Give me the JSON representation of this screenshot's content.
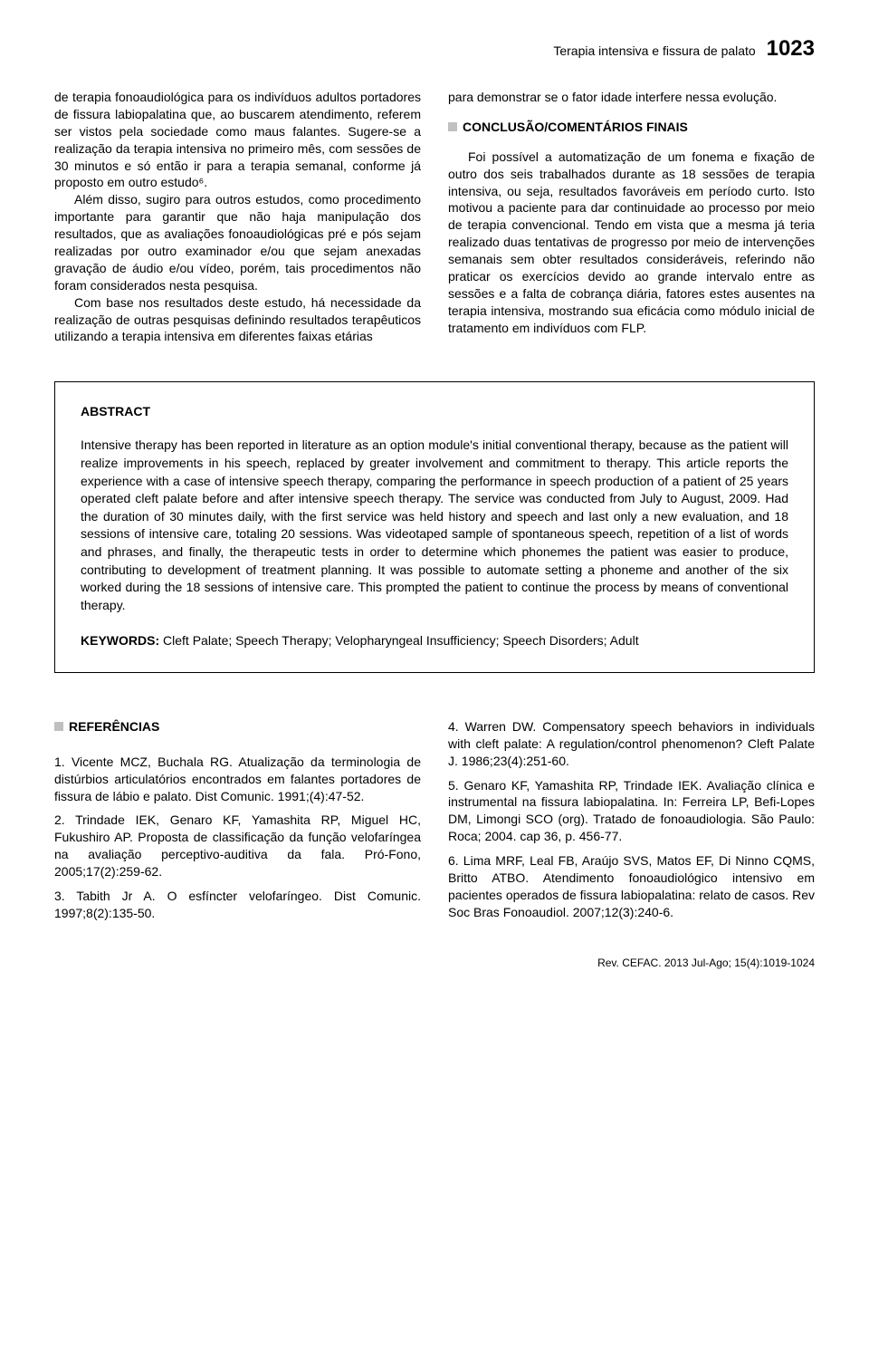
{
  "header": {
    "running_title": "Terapia intensiva e fissura de palato",
    "page_number": "1023"
  },
  "left_col": {
    "p1": "de terapia fonoaudiológica para os indivíduos adultos portadores de fissura labiopalatina que, ao buscarem atendimento, referem ser vistos pela sociedade como maus falantes. Sugere-se a realização da terapia intensiva no primeiro mês, com sessões de 30 minutos e só então ir para a terapia semanal, conforme já proposto em outro estudo⁶.",
    "p2": "Além disso, sugiro para outros estudos, como procedimento importante para garantir que não haja manipulação dos resultados, que as avaliações fonoaudiológicas pré e pós sejam realizadas por outro examinador e/ou que sejam anexadas gravação de áudio e/ou vídeo, porém, tais procedimentos não foram considerados nesta pesquisa.",
    "p3": "Com base nos resultados deste estudo, há necessidade da realização de outras pesquisas definindo resultados terapêuticos utilizando a terapia intensiva em diferentes faixas etárias"
  },
  "right_col": {
    "p1": "para demonstrar se o fator idade interfere nessa evolução.",
    "section_title": "CONCLUSÃO/COMENTÁRIOS FINAIS",
    "p2": "Foi possível a automatização de um fonema e fixação de outro dos seis trabalhados durante as 18 sessões de terapia intensiva, ou seja, resultados favoráveis em período curto. Isto motivou a paciente para dar continuidade ao processo por meio de terapia convencional. Tendo em vista que a mesma já teria realizado duas tentativas de progresso por meio de intervenções semanais sem obter resultados consideráveis, referindo não praticar os exercícios devido ao grande intervalo entre as sessões e a falta de cobrança diária, fatores estes ausentes na terapia intensiva, mostrando sua eficácia como módulo inicial de tratamento em indivíduos com FLP."
  },
  "abstract": {
    "title": "ABSTRACT",
    "text": "Intensive therapy has been reported in literature as an option module's initial conventional therapy, because as the patient will realize improvements in his speech, replaced by greater involvement and commitment to therapy. This article reports the experience with a case of intensive speech therapy, comparing the performance in speech production of a patient of 25 years operated cleft palate before and after intensive speech therapy. The service was conducted from July to August, 2009. Had the duration of 30 minutes daily, with the first service was held history and speech and last only a new evaluation, and 18 sessions of intensive care, totaling 20 sessions. Was videotaped sample of spontaneous speech, repetition of a list of words and phrases, and finally, the therapeutic tests in order to determine which phonemes the patient was easier to produce, contributing to development of treatment planning. It was possible to automate setting a phoneme and another of the six worked during the 18 sessions of intensive care. This prompted the patient to continue the process by means of conventional therapy.",
    "keywords_label": "KEYWORDS:",
    "keywords": " Cleft Palate; Speech Therapy; Velopharyngeal Insufficiency; Speech Disorders; Adult"
  },
  "references": {
    "title": "REFERÊNCIAS",
    "left": [
      "1. Vicente MCZ, Buchala RG. Atualização da terminologia de distúrbios articulatórios encontrados em falantes portadores de fissura de lábio e palato. Dist Comunic. 1991;(4):47-52.",
      "2. Trindade IEK, Genaro KF, Yamashita RP, Miguel HC, Fukushiro AP. Proposta de classificação da função velofaríngea na avaliação perceptivo-auditiva da fala. Pró-Fono, 2005;17(2):259-62.",
      "3. Tabith Jr A. O esfíncter velofaríngeo. Dist Comunic. 1997;8(2):135-50."
    ],
    "right": [
      "4. Warren DW. Compensatory speech behaviors in individuals with cleft palate: A regulation/control phenomenon? Cleft Palate J. 1986;23(4):251-60.",
      "5. Genaro KF, Yamashita RP, Trindade IEK. Avaliação clínica e instrumental na fissura labiopalatina. In: Ferreira LP, Befi-Lopes DM, Limongi SCO (org). Tratado de fonoaudiologia. São Paulo: Roca; 2004. cap 36, p. 456-77.",
      "6. Lima MRF, Leal FB, Araújo SVS, Matos EF, Di Ninno CQMS, Britto ATBO. Atendimento fonoaudiológico intensivo em pacientes operados de fissura labiopalatina: relato de casos. Rev Soc Bras Fonoaudiol. 2007;12(3):240-6."
    ]
  },
  "footer": {
    "citation": "Rev. CEFAC. 2013 Jul-Ago; 15(4):1019-1024"
  }
}
